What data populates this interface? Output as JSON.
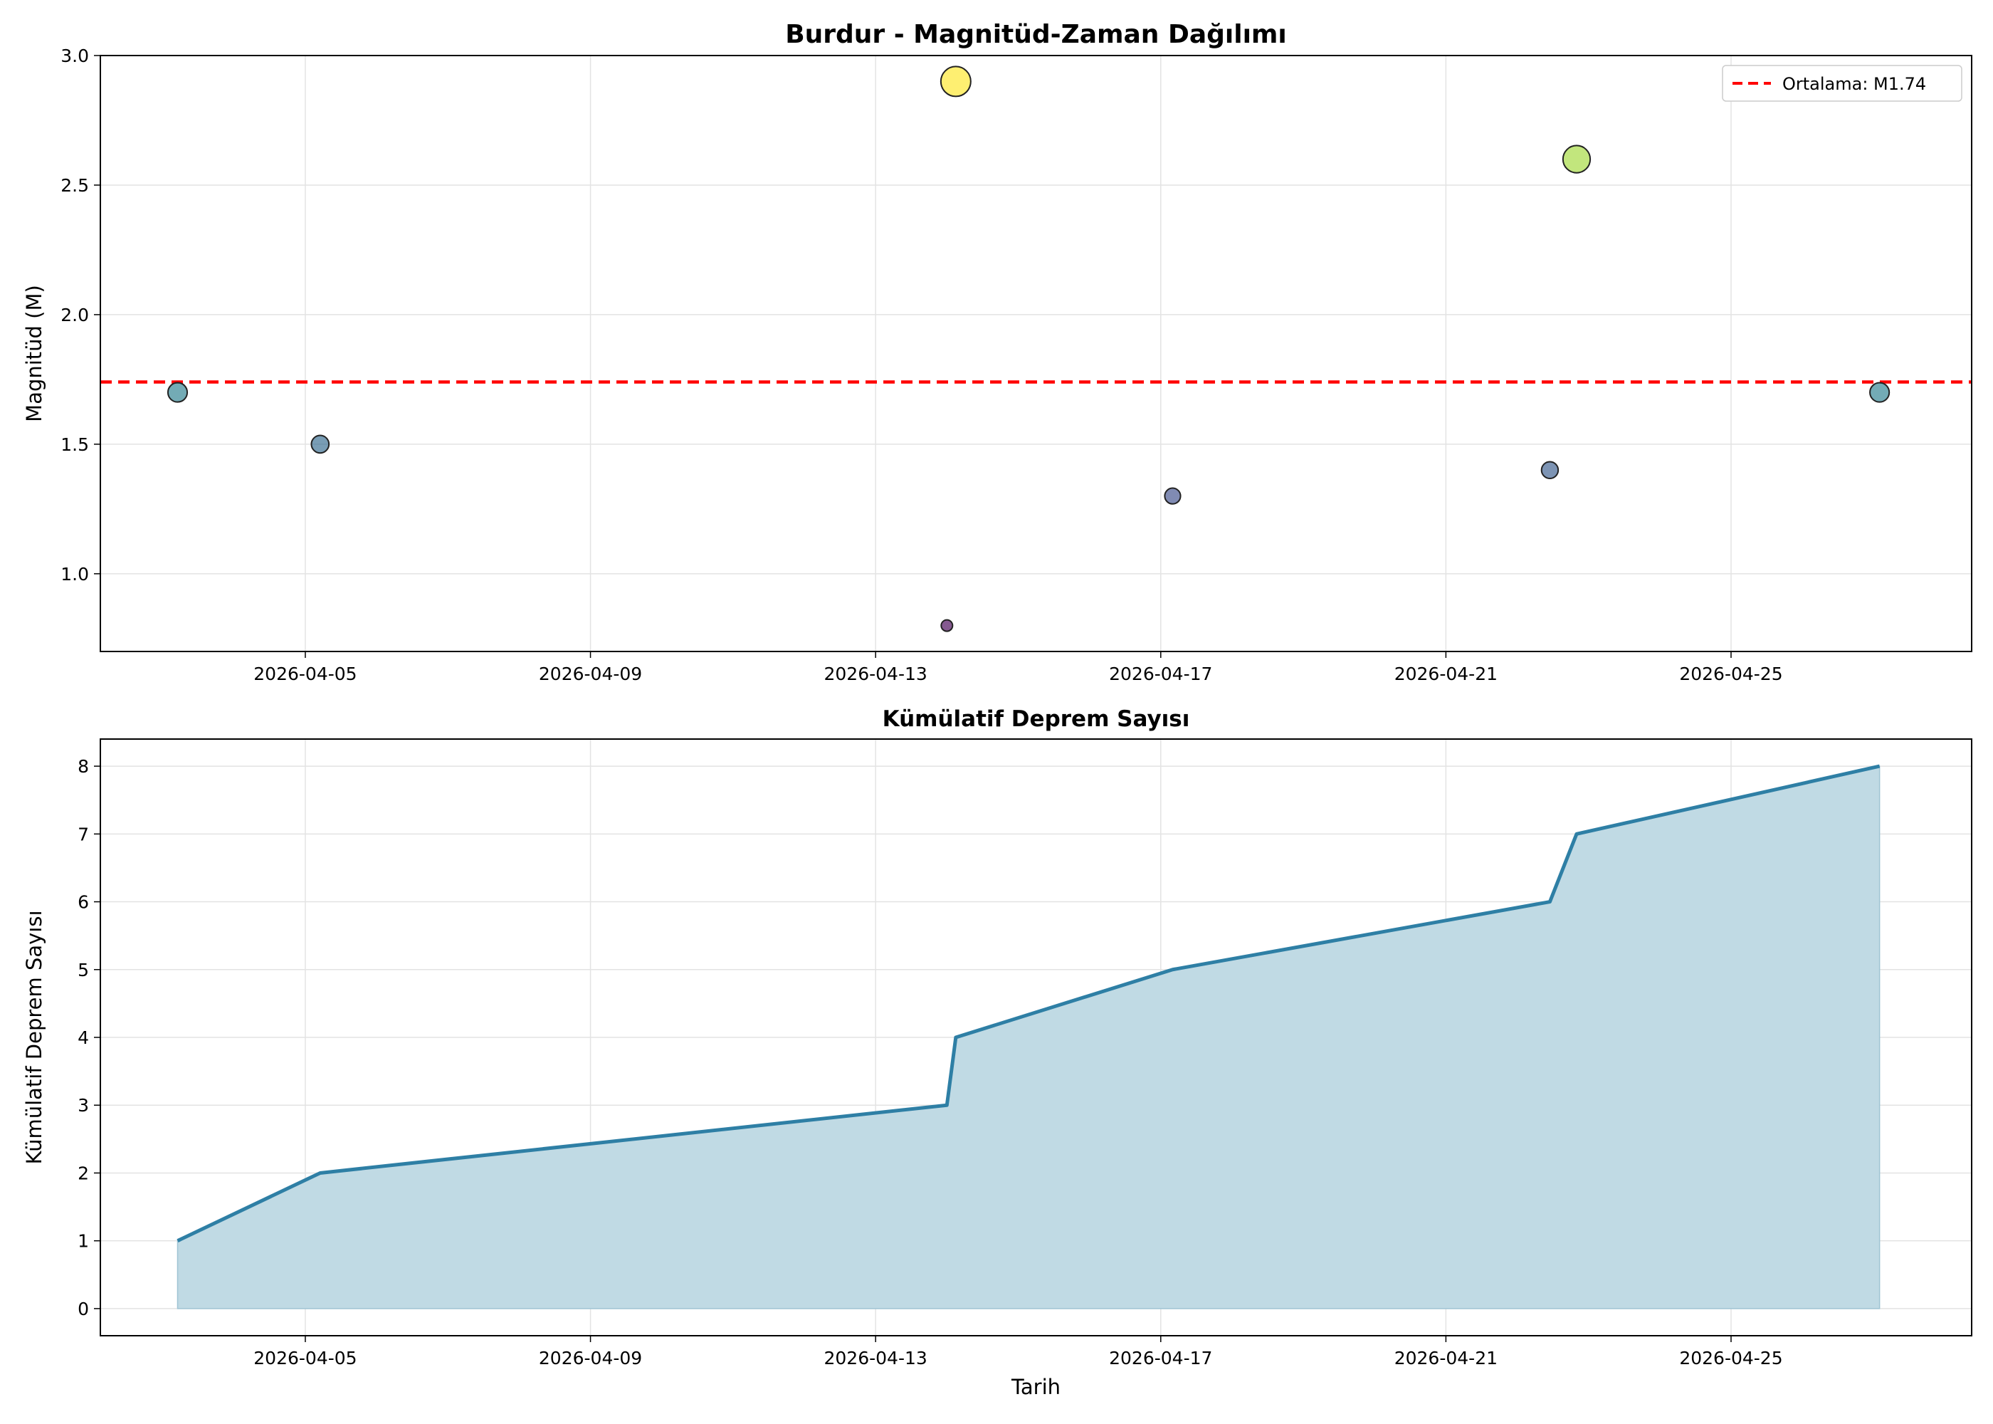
{
  "chart_data": [
    {
      "type": "scatter",
      "title": "Burdur - Magnitüd-Zaman Dağılımı",
      "xlabel": "",
      "ylabel": "Magnitüd (M)",
      "xlim": [
        "2026-04-02T03:00",
        "2026-04-28T09:00"
      ],
      "ylim": [
        0.7,
        3.0
      ],
      "x_ticks": [
        "2026-04-05",
        "2026-04-09",
        "2026-04-13",
        "2026-04-17",
        "2026-04-21",
        "2026-04-25"
      ],
      "y_ticks": [
        "1.0",
        "1.5",
        "2.0",
        "2.5",
        "3.0"
      ],
      "grid": true,
      "legend_position": "top-right",
      "points": [
        {
          "x": "2026-04-03T05:00",
          "y": 1.7
        },
        {
          "x": "2026-04-05T05:00",
          "y": 1.5
        },
        {
          "x": "2026-04-14T00:00",
          "y": 0.8
        },
        {
          "x": "2026-04-14T03:00",
          "y": 2.9
        },
        {
          "x": "2026-04-17T04:00",
          "y": 1.3
        },
        {
          "x": "2026-04-22T11:00",
          "y": 1.4
        },
        {
          "x": "2026-04-22T20:00",
          "y": 2.6
        },
        {
          "x": "2026-04-27T02:00",
          "y": 1.7
        }
      ],
      "mean_line": {
        "value": 1.74,
        "label": "Ortalama: M1.74",
        "color": "#ff0000"
      },
      "colormap": "viridis"
    },
    {
      "type": "area",
      "title": "Kümülatif Deprem Sayısı",
      "xlabel": "Tarih",
      "ylabel": "Kümülatif Deprem Sayısı",
      "xlim": [
        "2026-04-02T03:00",
        "2026-04-28T09:00"
      ],
      "ylim": [
        -0.4,
        8.4
      ],
      "x_ticks": [
        "2026-04-05",
        "2026-04-09",
        "2026-04-13",
        "2026-04-17",
        "2026-04-21",
        "2026-04-25"
      ],
      "y_ticks": [
        "0",
        "1",
        "2",
        "3",
        "4",
        "5",
        "6",
        "7",
        "8"
      ],
      "grid": true,
      "x": [
        "2026-04-03T05:00",
        "2026-04-05T05:00",
        "2026-04-14T00:00",
        "2026-04-14T03:00",
        "2026-04-17T04:00",
        "2026-04-22T11:00",
        "2026-04-22T20:00",
        "2026-04-27T02:00"
      ],
      "values": [
        1,
        2,
        3,
        4,
        5,
        6,
        7,
        8
      ],
      "line_color": "#2e7fa5",
      "fill_color": "#c0dae4"
    }
  ]
}
